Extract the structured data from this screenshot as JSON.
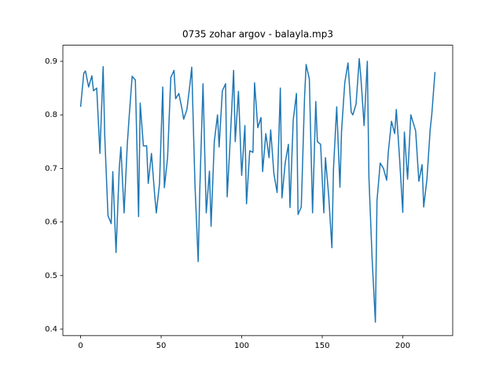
{
  "chart_data": {
    "type": "line",
    "title": "0735 zohar argov - balayla.mp3",
    "x": [
      0,
      2,
      3,
      5,
      7,
      8,
      10,
      12,
      14,
      15,
      17,
      19,
      20,
      22,
      24,
      25,
      27,
      29,
      30,
      32,
      34,
      36,
      37,
      39,
      41,
      42,
      44,
      46,
      47,
      49,
      51,
      52,
      54,
      56,
      58,
      59,
      61,
      63,
      64,
      66,
      68,
      69,
      71,
      73,
      74,
      76,
      78,
      80,
      81,
      83,
      85,
      86,
      88,
      90,
      91,
      93,
      95,
      96,
      98,
      100,
      102,
      103,
      105,
      107,
      108,
      110,
      112,
      113,
      115,
      117,
      118,
      120,
      122,
      124,
      125,
      127,
      129,
      130,
      132,
      134,
      135,
      137,
      139,
      140,
      142,
      144,
      146,
      147,
      149,
      151,
      152,
      154,
      156,
      157,
      159,
      161,
      162,
      164,
      166,
      168,
      169,
      171,
      173,
      174,
      176,
      178,
      179,
      181,
      183,
      184,
      186,
      188,
      190,
      191,
      193,
      195,
      196,
      198,
      200,
      201,
      203,
      205,
      206,
      208,
      210,
      212,
      213,
      215,
      217,
      218,
      220
    ],
    "series": [
      {
        "color": "#1f77b4",
        "values": [
          0.815,
          0.878,
          0.882,
          0.852,
          0.873,
          0.845,
          0.85,
          0.728,
          0.89,
          0.76,
          0.612,
          0.597,
          0.694,
          0.543,
          0.7,
          0.74,
          0.617,
          0.745,
          0.79,
          0.872,
          0.865,
          0.61,
          0.822,
          0.742,
          0.742,
          0.672,
          0.728,
          0.65,
          0.617,
          0.672,
          0.852,
          0.664,
          0.72,
          0.87,
          0.883,
          0.83,
          0.84,
          0.81,
          0.792,
          0.81,
          0.86,
          0.889,
          0.67,
          0.526,
          0.66,
          0.858,
          0.617,
          0.695,
          0.592,
          0.75,
          0.8,
          0.74,
          0.845,
          0.858,
          0.647,
          0.76,
          0.883,
          0.75,
          0.844,
          0.687,
          0.78,
          0.634,
          0.733,
          0.73,
          0.86,
          0.776,
          0.795,
          0.694,
          0.765,
          0.72,
          0.772,
          0.69,
          0.655,
          0.85,
          0.645,
          0.71,
          0.745,
          0.627,
          0.79,
          0.84,
          0.614,
          0.628,
          0.83,
          0.894,
          0.867,
          0.617,
          0.825,
          0.75,
          0.745,
          0.617,
          0.72,
          0.65,
          0.552,
          0.7,
          0.815,
          0.665,
          0.77,
          0.86,
          0.897,
          0.805,
          0.8,
          0.82,
          0.905,
          0.87,
          0.78,
          0.9,
          0.683,
          0.53,
          0.413,
          0.64,
          0.71,
          0.7,
          0.678,
          0.73,
          0.788,
          0.765,
          0.81,
          0.72,
          0.618,
          0.768,
          0.68,
          0.8,
          0.79,
          0.77,
          0.676,
          0.707,
          0.628,
          0.68,
          0.772,
          0.8,
          0.88
        ]
      }
    ],
    "xlim": [
      -11,
      231
    ],
    "ylim": [
      0.388,
      0.93
    ],
    "xticks": [
      0,
      50,
      100,
      150,
      200
    ],
    "yticks": [
      0.4,
      0.5,
      0.6,
      0.7,
      0.8,
      0.9
    ]
  }
}
